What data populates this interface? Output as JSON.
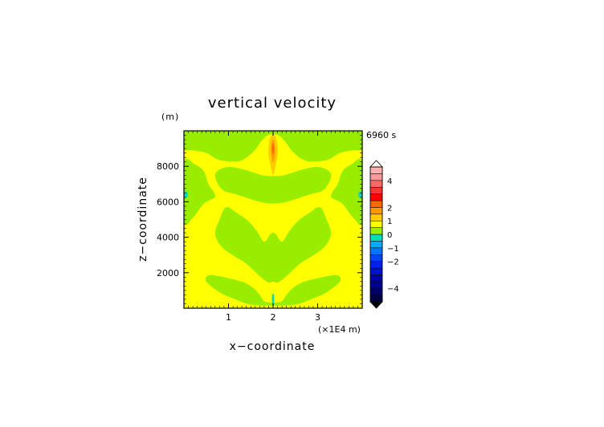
{
  "chart_data": {
    "type": "heatmap",
    "title": "vertical velocity",
    "xlabel": "x−coordinate",
    "ylabel": "z−coordinate",
    "y_unit": "(m)",
    "x_unit": "(×1E4 m)",
    "time_label": "6960 s",
    "xlim": [
      0,
      4
    ],
    "ylim": [
      0,
      10000
    ],
    "x_ticks": [
      1,
      2,
      3
    ],
    "x_tick_labels": [
      "1",
      "2",
      "3"
    ],
    "y_ticks": [
      2000,
      4000,
      6000,
      8000
    ],
    "y_tick_labels": [
      "2000",
      "4000",
      "6000",
      "8000"
    ],
    "background_level_color": "#ffff00",
    "regions": [
      {
        "level": "0 to 0.5",
        "color": "#99ee00",
        "points": [
          [
            0,
            10000
          ],
          [
            4,
            10000
          ],
          [
            4,
            9000
          ],
          [
            3.8,
            8900
          ],
          [
            3.5,
            8750
          ],
          [
            3.2,
            8350
          ],
          [
            2.75,
            8300
          ],
          [
            2.45,
            8800
          ],
          [
            2.3,
            9300
          ],
          [
            2.15,
            9700
          ],
          [
            2,
            9800
          ],
          [
            1.85,
            9700
          ],
          [
            1.7,
            9300
          ],
          [
            1.55,
            8800
          ],
          [
            1.25,
            8300
          ],
          [
            0.8,
            8350
          ],
          [
            0.5,
            8750
          ],
          [
            0.2,
            8900
          ],
          [
            0,
            9000
          ]
        ]
      },
      {
        "level": "0 to 0.5",
        "color": "#99ee00",
        "points": [
          [
            0,
            8200
          ],
          [
            0.25,
            8100
          ],
          [
            0.45,
            7700
          ],
          [
            0.55,
            7000
          ],
          [
            0.7,
            6300
          ],
          [
            0.45,
            5900
          ],
          [
            0.2,
            5100
          ],
          [
            0,
            4900
          ]
        ]
      },
      {
        "level": "0 to 0.5",
        "color": "#99ee00",
        "points": [
          [
            4,
            8200
          ],
          [
            3.75,
            8100
          ],
          [
            3.55,
            7700
          ],
          [
            3.45,
            7000
          ],
          [
            3.3,
            6300
          ],
          [
            3.55,
            5900
          ],
          [
            3.8,
            5100
          ],
          [
            4,
            4900
          ]
        ]
      },
      {
        "level": "0 to 0.5",
        "color": "#99ee00",
        "points": [
          [
            0.95,
            7950
          ],
          [
            1.3,
            7850
          ],
          [
            1.75,
            7500
          ],
          [
            2,
            7450
          ],
          [
            2.25,
            7500
          ],
          [
            2.7,
            7850
          ],
          [
            3.05,
            7950
          ],
          [
            3.3,
            7550
          ],
          [
            3.15,
            6700
          ],
          [
            2.8,
            6400
          ],
          [
            2.3,
            6000
          ],
          [
            2,
            5900
          ],
          [
            1.7,
            6000
          ],
          [
            1.2,
            6400
          ],
          [
            0.85,
            6700
          ],
          [
            0.7,
            7550
          ]
        ]
      },
      {
        "level": "0 to 0.5",
        "color": "#99ee00",
        "points": [
          [
            0.95,
            5700
          ],
          [
            1.2,
            5350
          ],
          [
            1.45,
            4900
          ],
          [
            1.65,
            4300
          ],
          [
            1.8,
            3750
          ],
          [
            1.95,
            4200
          ],
          [
            2.05,
            4200
          ],
          [
            2.2,
            3750
          ],
          [
            2.35,
            4300
          ],
          [
            2.55,
            4900
          ],
          [
            2.8,
            5350
          ],
          [
            3.05,
            5700
          ],
          [
            3.2,
            5000
          ],
          [
            3.3,
            4200
          ],
          [
            3.15,
            3450
          ],
          [
            2.85,
            2900
          ],
          [
            2.65,
            2600
          ],
          [
            2.4,
            2050
          ],
          [
            2.25,
            1700
          ],
          [
            2.1,
            1450
          ],
          [
            2,
            1500
          ],
          [
            1.9,
            1450
          ],
          [
            1.75,
            1700
          ],
          [
            1.6,
            2050
          ],
          [
            1.35,
            2600
          ],
          [
            1.15,
            2900
          ],
          [
            0.85,
            3450
          ],
          [
            0.7,
            4200
          ],
          [
            0.8,
            5000
          ]
        ]
      },
      {
        "level": "0 to 0.5",
        "color": "#99ee00",
        "points": [
          [
            0.55,
            1850
          ],
          [
            0.8,
            1800
          ],
          [
            1.3,
            1500
          ],
          [
            1.55,
            1150
          ],
          [
            1.7,
            750
          ],
          [
            1.8,
            400
          ],
          [
            2,
            300
          ],
          [
            2.2,
            400
          ],
          [
            2.3,
            750
          ],
          [
            2.45,
            1150
          ],
          [
            2.7,
            1500
          ],
          [
            3.2,
            1800
          ],
          [
            3.45,
            1850
          ],
          [
            3.5,
            1500
          ],
          [
            3.2,
            900
          ],
          [
            2.9,
            550
          ],
          [
            2.5,
            200
          ],
          [
            2,
            150
          ],
          [
            1.5,
            200
          ],
          [
            1.1,
            550
          ],
          [
            0.8,
            900
          ],
          [
            0.5,
            1500
          ]
        ]
      },
      {
        "level": "0.5 to 1",
        "color": "#ffcc00",
        "points": [
          [
            1.95,
            9700
          ],
          [
            2.05,
            9700
          ],
          [
            2.1,
            9150
          ],
          [
            2.1,
            8650
          ],
          [
            2.05,
            7950
          ],
          [
            2,
            7500
          ],
          [
            1.95,
            7950
          ],
          [
            1.9,
            8650
          ],
          [
            1.9,
            9150
          ]
        ]
      },
      {
        "level": "1 to 1.5",
        "color": "#ff9900",
        "points": [
          [
            1.98,
            9450
          ],
          [
            2.02,
            9450
          ],
          [
            2.05,
            9000
          ],
          [
            2.03,
            8500
          ],
          [
            2,
            8200
          ],
          [
            1.97,
            8500
          ],
          [
            1.95,
            9000
          ]
        ]
      },
      {
        "level": "1.5 to 2",
        "color": "#ff6600",
        "points": [
          [
            1.99,
            9250
          ],
          [
            2.01,
            9250
          ],
          [
            2.02,
            9000
          ],
          [
            2.01,
            8750
          ],
          [
            2,
            8650
          ],
          [
            1.99,
            8750
          ],
          [
            1.98,
            9000
          ]
        ]
      },
      {
        "level": "0 to 0.5",
        "color": "#99ee00",
        "points": [
          [
            1.97,
            6500
          ],
          [
            2.03,
            6500
          ],
          [
            2.03,
            6100
          ],
          [
            1.97,
            6100
          ]
        ]
      },
      {
        "level": "-0.5 to 0",
        "color": "#00ddbb",
        "points": [
          [
            0,
            6600
          ],
          [
            0.08,
            6500
          ],
          [
            0.08,
            6300
          ],
          [
            0,
            6200
          ]
        ]
      },
      {
        "level": "-0.5 to 0",
        "color": "#00ddbb",
        "points": [
          [
            4,
            6600
          ],
          [
            3.92,
            6500
          ],
          [
            3.92,
            6300
          ],
          [
            4,
            6200
          ]
        ]
      },
      {
        "level": "-0.5 to 0",
        "color": "#00ddbb",
        "points": [
          [
            1.98,
            750
          ],
          [
            2.02,
            750
          ],
          [
            2.02,
            250
          ],
          [
            1.98,
            250
          ]
        ]
      }
    ],
    "colorbar": {
      "min": -5,
      "max": 5,
      "step": 0.5,
      "tick_values": [
        4,
        2,
        1,
        0,
        -1,
        -2,
        -4
      ],
      "tick_labels": [
        "4",
        "2",
        "1",
        "0",
        "−1",
        "−2",
        "−4"
      ],
      "colors": [
        "#000044",
        "#000066",
        "#000088",
        "#0000aa",
        "#0011cc",
        "#0022ee",
        "#0044ff",
        "#0077ff",
        "#00aaff",
        "#00ddbb",
        "#99ee00",
        "#ffff00",
        "#ffcc00",
        "#ff9900",
        "#ff6600",
        "#ff0000",
        "#ff3333",
        "#ff6666",
        "#ff9999",
        "#ffb0b0"
      ],
      "over_triangle_color": "#ffffff",
      "under_triangle_color": "#000000"
    }
  }
}
